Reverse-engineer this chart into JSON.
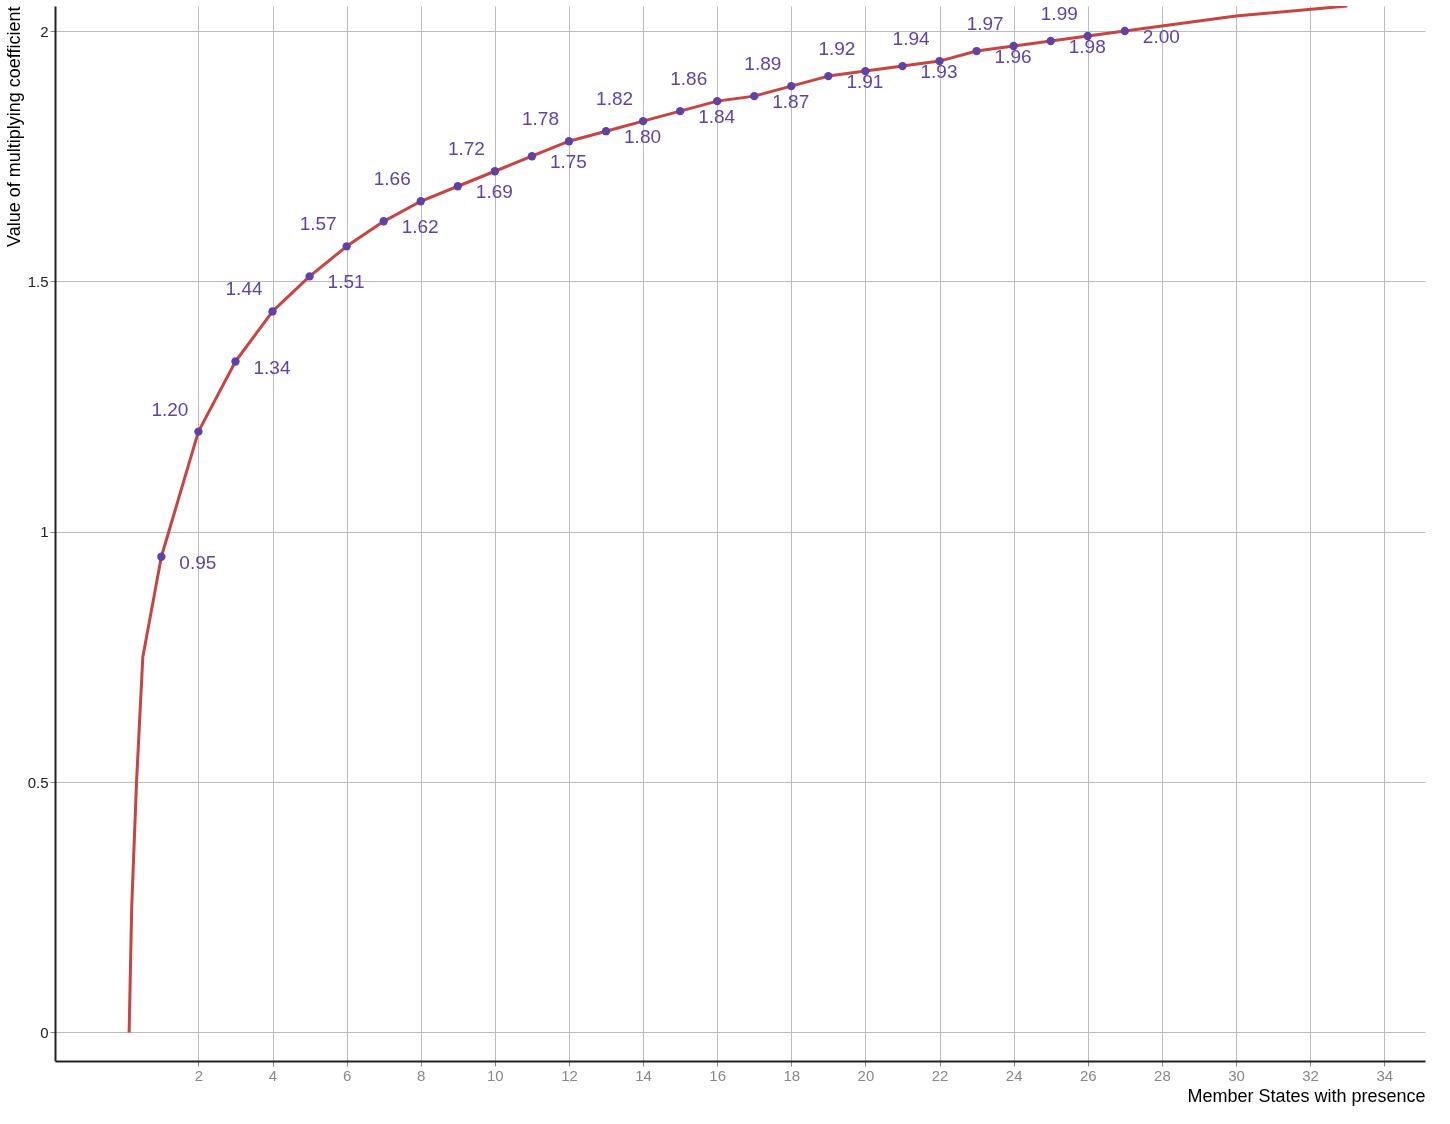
{
  "chart_data": {
    "type": "line",
    "xlabel": "Member States with presence",
    "ylabel": "Value of multiplying coefficient",
    "xlim": [
      -1.87,
      35.1
    ],
    "ylim": [
      -0.057,
      2.05
    ],
    "xticks": [
      2,
      4,
      6,
      8,
      10,
      12,
      14,
      16,
      18,
      20,
      22,
      24,
      26,
      28,
      30,
      32,
      34
    ],
    "yticks": [
      0,
      0.5,
      1,
      1.5,
      2
    ],
    "grid": true,
    "line_style": "solid",
    "series": [
      {
        "color": "#c74440",
        "x": [
          0.13,
          0.2,
          0.33,
          0.5,
          1,
          2,
          3,
          4,
          5,
          6,
          7,
          8,
          9,
          10,
          11,
          12,
          13,
          14,
          15,
          16,
          17,
          18,
          19,
          20,
          21,
          22,
          23,
          24,
          25,
          26,
          27,
          30,
          33
        ],
        "values": [
          0,
          0.25,
          0.5,
          0.75,
          0.95,
          1.2,
          1.34,
          1.44,
          1.51,
          1.57,
          1.62,
          1.66,
          1.69,
          1.72,
          1.75,
          1.78,
          1.8,
          1.82,
          1.84,
          1.86,
          1.87,
          1.89,
          1.91,
          1.92,
          1.93,
          1.94,
          1.96,
          1.97,
          1.98,
          1.99,
          2.0,
          2.03,
          2.05
        ]
      },
      {
        "type": "scatter",
        "marker": "circle",
        "color": "#6042a6",
        "x": [
          1,
          2,
          3,
          4,
          5,
          6,
          7,
          8,
          9,
          10,
          11,
          12,
          13,
          14,
          15,
          16,
          17,
          18,
          19,
          20,
          21,
          22,
          23,
          24,
          25,
          26,
          27
        ],
        "values": [
          0.95,
          1.2,
          1.34,
          1.44,
          1.51,
          1.57,
          1.62,
          1.66,
          1.69,
          1.72,
          1.75,
          1.78,
          1.8,
          1.82,
          1.84,
          1.86,
          1.87,
          1.89,
          1.91,
          1.92,
          1.93,
          1.94,
          1.96,
          1.97,
          1.98,
          1.99,
          2.0
        ],
        "value_labels": [
          "0.95",
          "1.20",
          "1.34",
          "1.44",
          "1.51",
          "1.57",
          "1.62",
          "1.66",
          "1.69",
          "1.72",
          "1.75",
          "1.78",
          "1.80",
          "1.82",
          "1.84",
          "1.86",
          "1.87",
          "1.89",
          "1.91",
          "1.92",
          "1.93",
          "1.94",
          "1.96",
          "1.97",
          "1.98",
          "1.99",
          "2.00"
        ]
      }
    ]
  }
}
